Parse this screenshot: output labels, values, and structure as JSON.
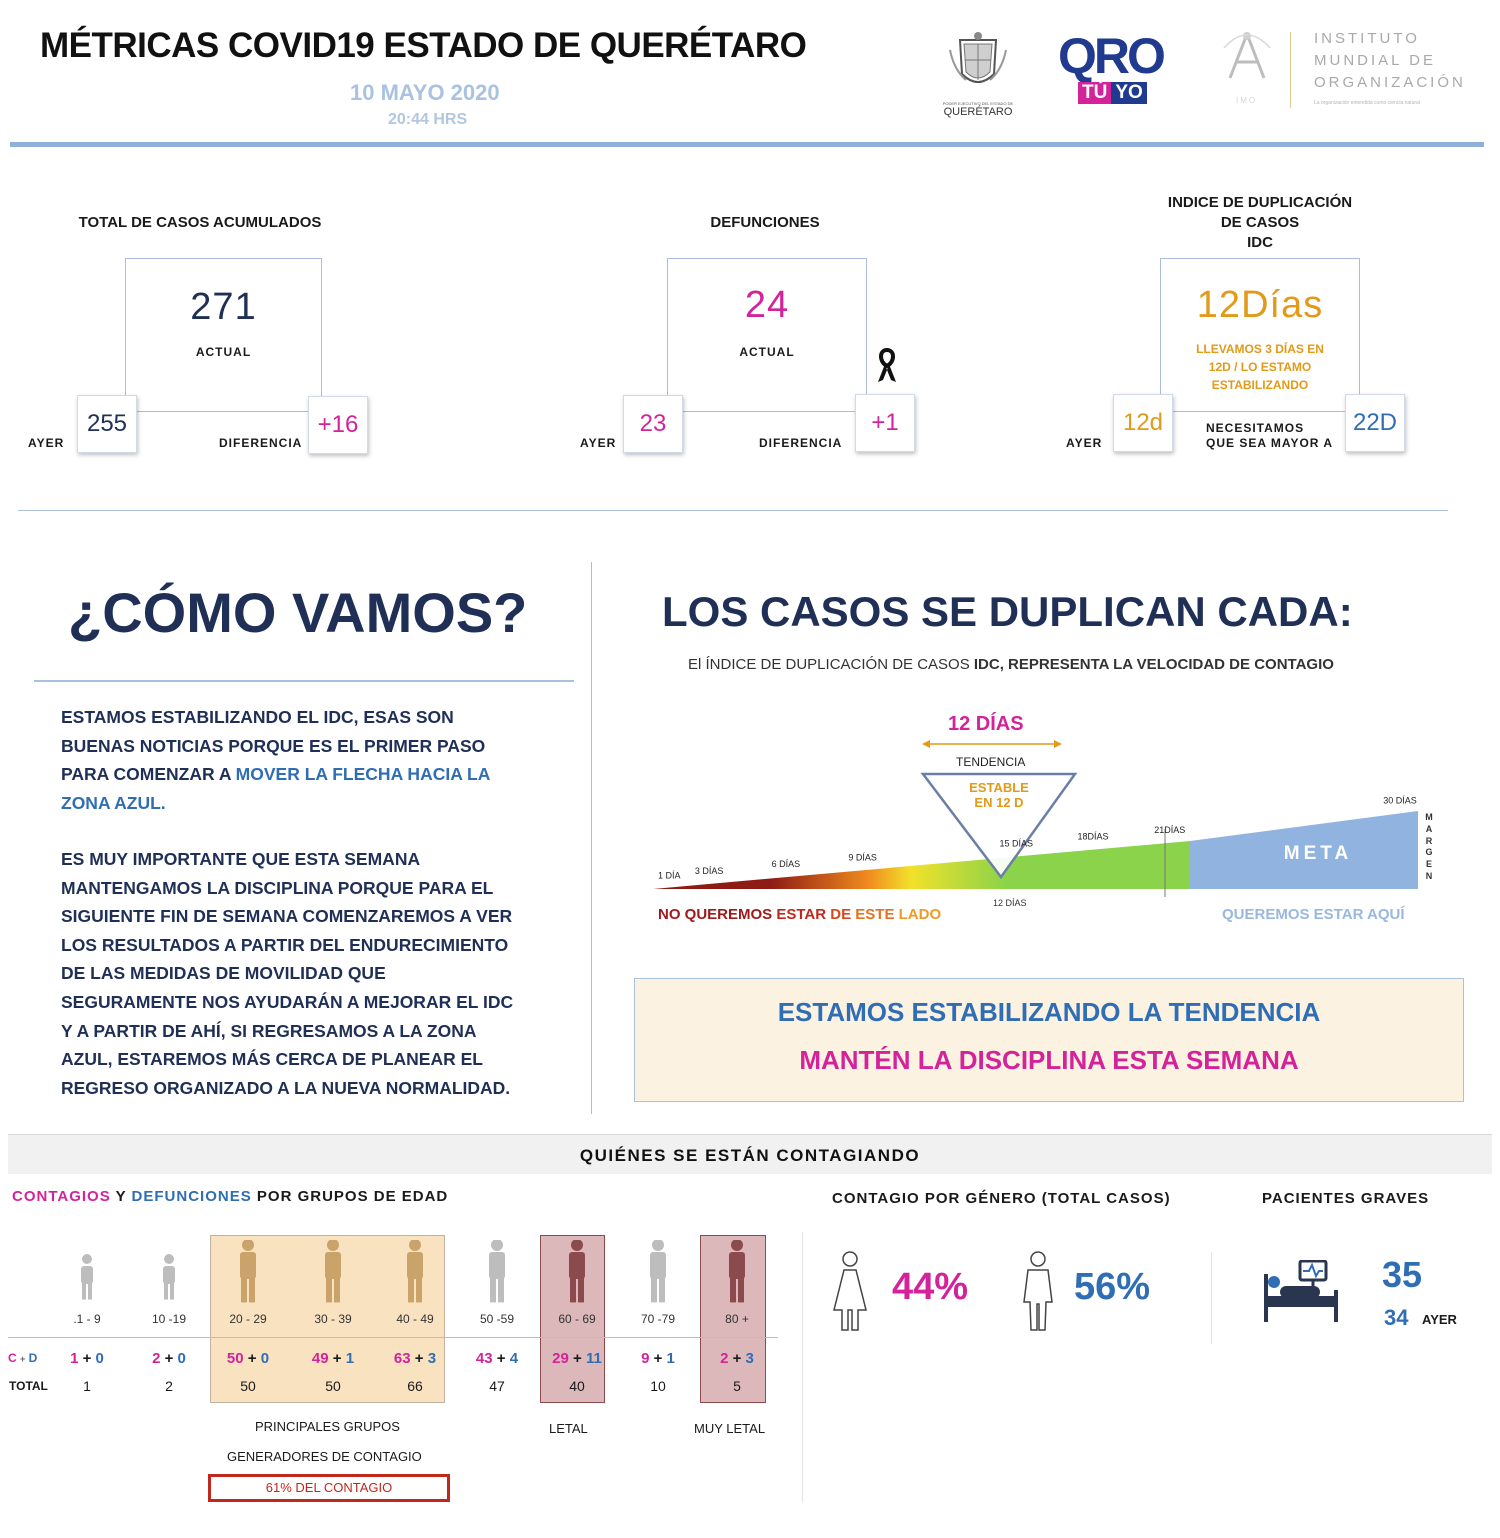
{
  "header": {
    "title": "MÉTRICAS COVID19 ESTADO DE QUERÉTARO",
    "date": "10 MAYO 2020",
    "time": "20:44 HRS",
    "logo_queretaro": "QUERÉTARO",
    "logo_queretaro_small": "PODER EJECUTIVO DEL ESTADO DE",
    "logo_qro_main": "QRO",
    "logo_qro_sub1": "TÚ",
    "logo_qro_sub2": "YO",
    "logo_imo_lines": [
      "INSTITUTO",
      "MUNDIAL DE",
      "ORGANIZACIÓN"
    ],
    "logo_imo_tag": "La organización entendida como ciencia natural",
    "logo_imo_abbr": "IMO"
  },
  "cases": {
    "title": "TOTAL DE CASOS ACUMULADOS",
    "value": "271",
    "actual": "ACTUAL",
    "yesterday": "255",
    "yesterday_label": "AYER",
    "diff": "+16",
    "diff_label": "DIFERENCIA"
  },
  "deaths": {
    "title": "DEFUNCIONES",
    "value": "24",
    "actual": "ACTUAL",
    "yesterday": "23",
    "yesterday_label": "AYER",
    "diff": "+1",
    "diff_label": "DIFERENCIA"
  },
  "idc": {
    "title_lines": [
      "INDICE DE DUPLICACIÓN",
      "DE CASOS",
      "IDC"
    ],
    "value": "12Días",
    "note_lines": [
      "LLEVAMOS 3 DÍAS EN",
      "12D / LO ESTAMO",
      "ESTABILIZANDO"
    ],
    "yesterday": "12d",
    "yesterday_label": "AYER",
    "need_lines": [
      "NECESITAMOS",
      "QUE SEA MAYOR A"
    ],
    "target": "22D"
  },
  "como": {
    "title": "¿CÓMO VAMOS?",
    "p1_lines": [
      "ESTAMOS ESTABILIZANDO EL IDC, ESAS SON",
      "BUENAS NOTICIAS PORQUE ES EL PRIMER PASO",
      "PARA COMENZAR A "
    ],
    "p1_highlight_a": "MOVER LA FLECHA HACIA LA",
    "p1_highlight_b": "ZONA AZUL.",
    "p2_lines": [
      "ES MUY IMPORTANTE QUE ESTA SEMANA",
      "MANTENGAMOS LA DISCIPLINA  PORQUE PARA EL",
      "SIGUIENTE FIN DE SEMANA COMENZAREMOS A VER",
      "LOS RESULTADOS A PARTIR DEL ENDURECIMIENTO",
      "DE LAS MEDIDAS DE MOVILIDAD QUE",
      "SEGURAMENTE NOS AYUDARÁN A MEJORAR EL IDC",
      "Y A PARTIR DE AHÍ, SI REGRESAMOS A LA ZONA",
      "AZUL, ESTAREMOS MÁS CERCA DE PLANEAR EL",
      "REGRESO ORGANIZADO A LA NUEVA NORMALIDAD."
    ]
  },
  "duplica": {
    "title": "LOS CASOS SE DUPLICAN CADA:",
    "subtitle_a": "El ÍNDICE DE DUPLICACIÓN DE CASOS ",
    "subtitle_b": "IDC, REPRESENTA LA VELOCIDAD DE CONTAGIO",
    "current": "12 DÍAS",
    "tendencia": "TENDENCIA",
    "estable_lines": [
      "ESTABLE",
      "EN 12 D"
    ],
    "ticks": [
      {
        "label": "1 DÍA",
        "day": 1
      },
      {
        "label": "3 DÍAS",
        "day": 3
      },
      {
        "label": "6 DÍAS",
        "day": 6
      },
      {
        "label": "9 DÍAS",
        "day": 9
      },
      {
        "label": "15 DÍAS",
        "day": 15
      },
      {
        "label": "18DÍAS",
        "day": 18
      },
      {
        "label": "21DÍAS",
        "day": 21
      },
      {
        "label": "30 DÍAS",
        "day": 30
      }
    ],
    "bottom_tick": "12 DÍAS",
    "meta": "META",
    "margen": "MARGEN",
    "left_note_words": [
      "NO QUEREMOS",
      "ESTAR",
      "DE",
      "ESTE",
      "LADO"
    ],
    "right_note": "QUEREMOS ESTAR AQUÍ",
    "colors": {
      "red": "#8e1c14",
      "orange": "#f08a1e",
      "yellow": "#f2e12a",
      "green": "#8ad34a",
      "meta_blue": "#90b3df"
    }
  },
  "callout": {
    "line1": "ESTAMOS ESTABILIZANDO LA TENDENCIA",
    "line2": "MANTÉN LA DISCIPLINA ESTA SEMANA"
  },
  "bottom": {
    "band_title": "QUIÉNES SE ESTÁN CONTAGIANDO",
    "age_title_a": "CONTAGIOS",
    "age_title_b": " Y ",
    "age_title_c": "DEFUNCIONES",
    "age_title_d": " POR GRUPOS DE EDAD",
    "row_cd_a": "C",
    "row_cd_plus": "+",
    "row_cd_b": "D",
    "row_total": "TOTAL",
    "age_groups": [
      {
        "label": ".1 - 9",
        "c": "1",
        "d": "0",
        "total": "1"
      },
      {
        "label": "10 -19",
        "c": "2",
        "d": "0",
        "total": "2"
      },
      {
        "label": "20 - 29",
        "c": "50",
        "d": "0",
        "total": "50"
      },
      {
        "label": "30 - 39",
        "c": "49",
        "d": "1",
        "total": "50"
      },
      {
        "label": "40 - 49",
        "c": "63",
        "d": "3",
        "total": "66"
      },
      {
        "label": "50 -59",
        "c": "43",
        "d": "4",
        "total": "47"
      },
      {
        "label": "60 - 69",
        "c": "29",
        "d": "11",
        "total": "40"
      },
      {
        "label": "70 -79",
        "c": "9",
        "d": "1",
        "total": "10"
      },
      {
        "label": "80 +",
        "c": "2",
        "d": "3",
        "total": "5"
      }
    ],
    "group_note_1": "PRINCIPALES GRUPOS",
    "group_note_2": "GENERADORES DE CONTAGIO",
    "group_pct": "61% DEL CONTAGIO",
    "letal": "LETAL",
    "muy_letal": "MUY LETAL",
    "gender_title": "CONTAGIO POR GÉNERO (TOTAL CASOS)",
    "female_pct": "44%",
    "male_pct": "56%",
    "graves_title": "PACIENTES GRAVES",
    "graves_value": "35",
    "graves_yesterday": "34",
    "graves_yesterday_label": "AYER"
  }
}
